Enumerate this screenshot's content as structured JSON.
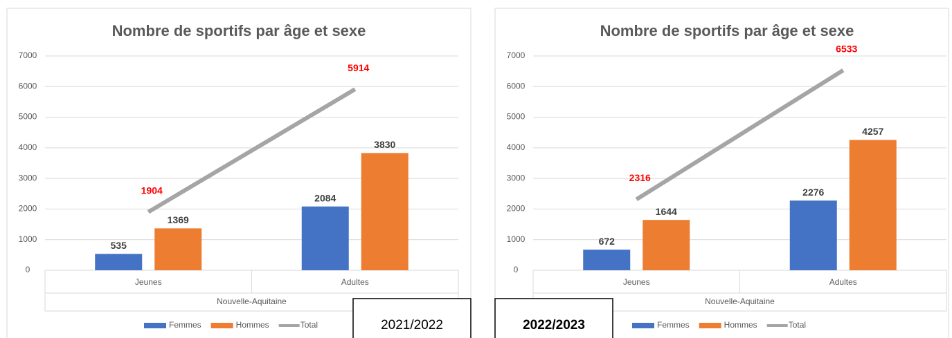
{
  "chart_data": [
    {
      "type": "bar",
      "title": "Nombre de sportifs par âge et sexe",
      "categories": [
        "Jeunes",
        "Adultes"
      ],
      "group_label": "Nouvelle-Aquitaine",
      "series": [
        {
          "name": "Femmes",
          "type": "bar",
          "color": "#4472c4",
          "label_color": "#404040",
          "values": [
            535,
            2084
          ]
        },
        {
          "name": "Hommes",
          "type": "bar",
          "color": "#ed7d31",
          "label_color": "#404040",
          "values": [
            1369,
            3830
          ]
        },
        {
          "name": "Total",
          "type": "line",
          "color": "#a5a5a5",
          "label_color": "#ff0000",
          "values": [
            1904,
            5914
          ]
        }
      ],
      "ylim": [
        0,
        7000
      ],
      "yticks": [
        0,
        1000,
        2000,
        3000,
        4000,
        5000,
        6000,
        7000
      ],
      "grid": true,
      "legend": "bottom",
      "caption": "2021/2022",
      "caption_bold": false
    },
    {
      "type": "bar",
      "title": "Nombre de sportifs par âge et sexe",
      "categories": [
        "Jeunes",
        "Adultes"
      ],
      "group_label": "Nouvelle-Aquitaine",
      "series": [
        {
          "name": "Femmes",
          "type": "bar",
          "color": "#4472c4",
          "label_color": "#404040",
          "values": [
            672,
            2276
          ]
        },
        {
          "name": "Hommes",
          "type": "bar",
          "color": "#ed7d31",
          "label_color": "#404040",
          "values": [
            1644,
            4257
          ]
        },
        {
          "name": "Total",
          "type": "line",
          "color": "#a5a5a5",
          "label_color": "#ff0000",
          "values": [
            2316,
            6533
          ]
        }
      ],
      "ylim": [
        0,
        7000
      ],
      "yticks": [
        0,
        1000,
        2000,
        3000,
        4000,
        5000,
        6000,
        7000
      ],
      "grid": true,
      "legend": "bottom",
      "caption": "2022/2023",
      "caption_bold": true
    }
  ]
}
